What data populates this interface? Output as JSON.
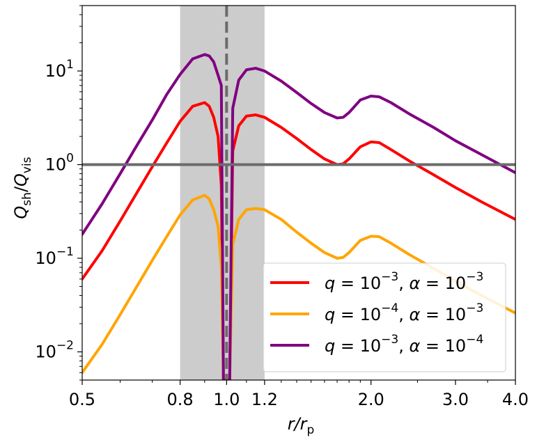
{
  "chart_data": {
    "type": "line",
    "x_scale": "log",
    "y_scale": "log",
    "xlim": [
      0.5,
      4.0
    ],
    "ylim": [
      0.005,
      50
    ],
    "xlabel": {
      "main": "r/r",
      "sub": "p"
    },
    "ylabel": {
      "num": "Q",
      "num_sub": "sh",
      "den": "Q",
      "den_sub": "vis"
    },
    "x_ticks": [
      {
        "value": 0.5,
        "label": "0.5"
      },
      {
        "value": 0.8,
        "label": "0.8"
      },
      {
        "value": 1.0,
        "label": "1.0"
      },
      {
        "value": 1.2,
        "label": "1.2"
      },
      {
        "value": 2.0,
        "label": "2.0"
      },
      {
        "value": 3.0,
        "label": "3.0"
      },
      {
        "value": 4.0,
        "label": "4.0"
      }
    ],
    "y_ticks": [
      {
        "value": 0.01,
        "base": "10",
        "exp": "−2"
      },
      {
        "value": 0.1,
        "base": "10",
        "exp": "−1"
      },
      {
        "value": 1,
        "base": "10",
        "exp": "0"
      },
      {
        "value": 10,
        "base": "10",
        "exp": "1"
      }
    ],
    "shaded_band": {
      "x_from": 0.8,
      "x_to": 1.2,
      "color": "#cccccc"
    },
    "vertical_line": {
      "x": 1.0,
      "style": "dashed",
      "color": "#6b6b6b"
    },
    "horizontal_line": {
      "y": 1.0,
      "style": "solid",
      "color": "#6b6b6b"
    },
    "legend_position": "lower-right",
    "series": [
      {
        "name": "q = 10^-3, α = 10^-3",
        "legend": {
          "q_exp": "−3",
          "a_exp": "−3"
        },
        "color": "#ff0000",
        "x": [
          0.5,
          0.55,
          0.6,
          0.65,
          0.7,
          0.75,
          0.8,
          0.85,
          0.9,
          0.92,
          0.94,
          0.96,
          0.975,
          0.985,
          1.015,
          1.03,
          1.06,
          1.1,
          1.15,
          1.2,
          1.3,
          1.4,
          1.5,
          1.6,
          1.7,
          1.75,
          1.8,
          1.9,
          2.0,
          2.08,
          2.2,
          2.4,
          2.7,
          3.0,
          3.4,
          4.0
        ],
        "y": [
          0.06,
          0.12,
          0.25,
          0.5,
          0.95,
          1.7,
          2.9,
          4.2,
          4.6,
          4.2,
          3.2,
          2.0,
          0.6,
          0.005,
          0.005,
          1.4,
          2.6,
          3.3,
          3.4,
          3.2,
          2.5,
          1.9,
          1.45,
          1.15,
          1.0,
          1.02,
          1.15,
          1.55,
          1.75,
          1.72,
          1.45,
          1.1,
          0.78,
          0.57,
          0.4,
          0.26
        ]
      },
      {
        "name": "q = 10^-4, α = 10^-3",
        "legend": {
          "q_exp": "−4",
          "a_exp": "−3"
        },
        "color": "#ffa500",
        "x": [
          0.5,
          0.55,
          0.6,
          0.65,
          0.7,
          0.75,
          0.8,
          0.85,
          0.9,
          0.92,
          0.94,
          0.96,
          0.975,
          0.985,
          1.015,
          1.03,
          1.06,
          1.1,
          1.15,
          1.2,
          1.3,
          1.4,
          1.5,
          1.6,
          1.7,
          1.75,
          1.8,
          1.9,
          2.0,
          2.08,
          2.2,
          2.4,
          2.7,
          3.0,
          3.4,
          4.0
        ],
        "y": [
          0.006,
          0.012,
          0.025,
          0.05,
          0.095,
          0.17,
          0.29,
          0.42,
          0.47,
          0.43,
          0.33,
          0.22,
          0.08,
          0.005,
          0.005,
          0.14,
          0.26,
          0.33,
          0.34,
          0.33,
          0.26,
          0.19,
          0.145,
          0.115,
          0.1,
          0.102,
          0.115,
          0.155,
          0.172,
          0.17,
          0.145,
          0.11,
          0.078,
          0.057,
          0.04,
          0.026
        ]
      },
      {
        "name": "q = 10^-3, α = 10^-4",
        "legend": {
          "q_exp": "−3",
          "a_exp": "−4"
        },
        "color": "#800080",
        "x": [
          0.5,
          0.55,
          0.6,
          0.65,
          0.7,
          0.75,
          0.8,
          0.85,
          0.9,
          0.92,
          0.94,
          0.96,
          0.975,
          0.985,
          1.015,
          1.03,
          1.06,
          1.1,
          1.15,
          1.2,
          1.3,
          1.4,
          1.5,
          1.6,
          1.7,
          1.75,
          1.8,
          1.9,
          2.0,
          2.08,
          2.2,
          2.4,
          2.7,
          3.0,
          3.4,
          4.0
        ],
        "y": [
          0.18,
          0.38,
          0.8,
          1.6,
          3.0,
          5.6,
          9.2,
          13.5,
          15.0,
          14.5,
          12.5,
          9.0,
          7.0,
          0.005,
          0.005,
          4.0,
          8.0,
          10.3,
          10.7,
          10.0,
          7.8,
          5.9,
          4.5,
          3.6,
          3.15,
          3.2,
          3.6,
          4.9,
          5.4,
          5.3,
          4.6,
          3.5,
          2.5,
          1.8,
          1.28,
          0.82
        ]
      }
    ]
  }
}
